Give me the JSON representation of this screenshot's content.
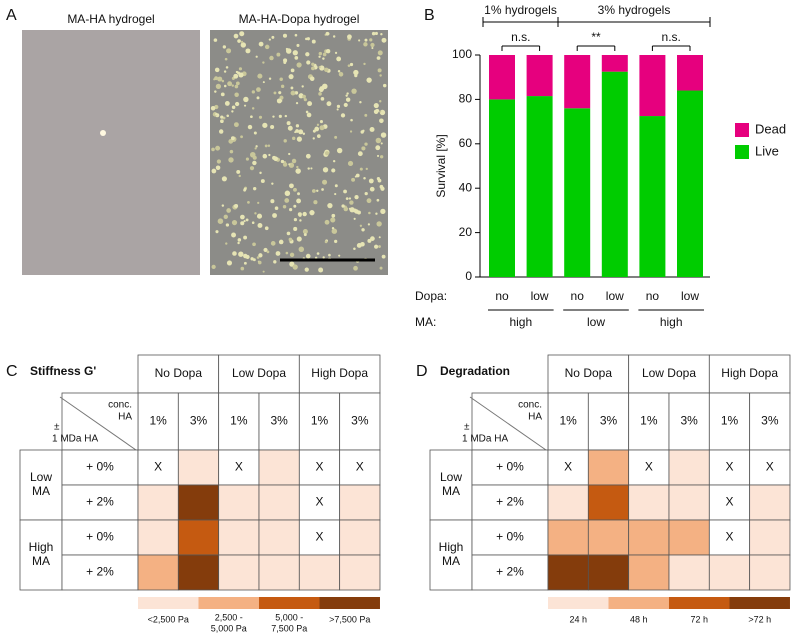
{
  "panel_labels": [
    "A",
    "B",
    "C",
    "D"
  ],
  "panel_a": {
    "images": [
      {
        "title": "MA-HA hydrogel"
      },
      {
        "title": "MA-HA-Dopa hydrogel"
      }
    ]
  },
  "chart_data": {
    "type": "stacked_bar",
    "ylabel": "Survival [%]",
    "category_row_label": "Dopa:",
    "categories": [
      "no",
      "low",
      "no",
      "low",
      "no",
      "low"
    ],
    "group_row_label": "MA:",
    "groups": [
      "high",
      "low",
      "high"
    ],
    "series": [
      {
        "name": "Live",
        "color": "#00cc00",
        "values": [
          80,
          81.5,
          76,
          92.5,
          72.5,
          84
        ]
      },
      {
        "name": "Dead",
        "color": "#e6007e",
        "values": [
          20,
          18.5,
          24,
          7.5,
          27.5,
          16
        ]
      }
    ],
    "ylim": [
      0,
      100
    ],
    "yticks": [
      0,
      20,
      40,
      60,
      80,
      100
    ],
    "headers": [
      "1% hydrogels",
      "3% hydrogels"
    ],
    "significance": [
      "n.s.",
      "**",
      "n.s."
    ],
    "legend": "right"
  },
  "tables": [
    {
      "title": "Stiffness G'",
      "column_groups": [
        "No Dopa",
        "Low Dopa",
        "High Dopa"
      ],
      "sub_columns": [
        "1%",
        "3%",
        "1%",
        "3%",
        "1%",
        "3%"
      ],
      "corner_top": [
        "conc.",
        "HA"
      ],
      "corner_bottom": [
        "±",
        "1 MDa HA"
      ],
      "row_groups": [
        {
          "label": [
            "Low",
            "MA"
          ],
          "rows": [
            {
              "label": "+ 0%",
              "cells": [
                "X",
                0,
                "X",
                0,
                "X",
                "X"
              ]
            },
            {
              "label": "+ 2%",
              "cells": [
                0,
                3,
                0,
                0,
                "X",
                0
              ]
            }
          ]
        },
        {
          "label": [
            "High",
            "MA"
          ],
          "rows": [
            {
              "label": "+ 0%",
              "cells": [
                0,
                2,
                0,
                0,
                "X",
                0
              ]
            },
            {
              "label": "+ 2%",
              "cells": [
                1,
                3,
                0,
                0,
                0,
                0
              ]
            }
          ]
        }
      ],
      "legend": [
        {
          "label": [
            "<2,500 Pa"
          ],
          "color": "#fce4d6"
        },
        {
          "label": [
            "2,500 -",
            "5,000 Pa"
          ],
          "color": "#f4b183"
        },
        {
          "label": [
            "5,000 -",
            "7,500 Pa"
          ],
          "color": "#c55a11"
        },
        {
          "label": [
            ">7,500 Pa"
          ],
          "color": "#843c0c"
        }
      ]
    },
    {
      "title": "Degradation",
      "column_groups": [
        "No Dopa",
        "Low Dopa",
        "High Dopa"
      ],
      "sub_columns": [
        "1%",
        "3%",
        "1%",
        "3%",
        "1%",
        "3%"
      ],
      "corner_top": [
        "conc.",
        "HA"
      ],
      "corner_bottom": [
        "±",
        "1 MDa HA"
      ],
      "row_groups": [
        {
          "label": [
            "Low",
            "MA"
          ],
          "rows": [
            {
              "label": "+ 0%",
              "cells": [
                "X",
                1,
                "X",
                0,
                "X",
                "X"
              ]
            },
            {
              "label": "+ 2%",
              "cells": [
                0,
                2,
                0,
                0,
                "X",
                0
              ]
            }
          ]
        },
        {
          "label": [
            "High",
            "MA"
          ],
          "rows": [
            {
              "label": "+ 0%",
              "cells": [
                1,
                1,
                1,
                1,
                "X",
                0
              ]
            },
            {
              "label": "+ 2%",
              "cells": [
                3,
                3,
                1,
                0,
                0,
                0
              ]
            }
          ]
        }
      ],
      "legend": [
        {
          "label": [
            "24 h"
          ],
          "color": "#fce4d6"
        },
        {
          "label": [
            "48 h"
          ],
          "color": "#f4b183"
        },
        {
          "label": [
            "72 h"
          ],
          "color": "#c55a11"
        },
        {
          "label": [
            ">72 h"
          ],
          "color": "#843c0c"
        }
      ]
    }
  ]
}
